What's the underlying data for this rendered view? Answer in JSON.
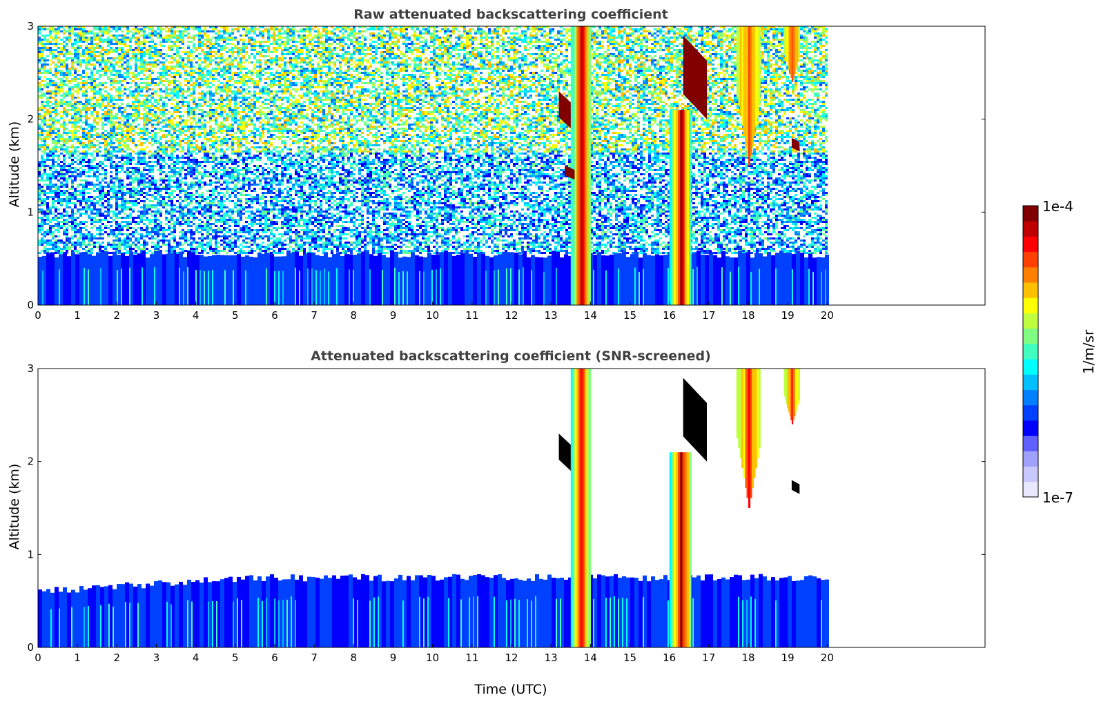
{
  "chart_data": [
    {
      "type": "heatmap",
      "title": "Raw attenuated backscattering coefficient",
      "xlabel": "",
      "ylabel": "Altitude (km)",
      "xlim": [
        0,
        24
      ],
      "ylim": [
        0,
        3
      ],
      "x_ticks": [
        "0",
        "1",
        "2",
        "3",
        "4",
        "5",
        "6",
        "7",
        "8",
        "9",
        "10",
        "11",
        "12",
        "13",
        "14",
        "15",
        "16",
        "17",
        "18",
        "19",
        "20"
      ],
      "y_ticks": [
        "0",
        "1",
        "2",
        "3"
      ],
      "data_extent_hours": [
        0,
        19.95
      ],
      "features": [
        {
          "kind": "noise_field",
          "x": [
            0,
            19.95
          ],
          "y": [
            0.55,
            3.0
          ],
          "level": "mid (cyan/green/yellow speckle)"
        },
        {
          "kind": "boundary_layer",
          "x": [
            0,
            19.95
          ],
          "y": [
            0,
            0.55
          ],
          "level": "low (blue)"
        },
        {
          "kind": "precip_column",
          "x": [
            13.5,
            14.0
          ],
          "y": [
            0,
            3.0
          ],
          "level": "high (yellow/orange/red)"
        },
        {
          "kind": "precip_column",
          "x": [
            16.0,
            16.55
          ],
          "y": [
            0,
            2.1
          ],
          "level": "high (yellow/orange/red)"
        },
        {
          "kind": "cloud_fallstreak",
          "x": [
            17.7,
            18.3
          ],
          "y": [
            1.5,
            3.0
          ],
          "level": "mid-high (yellow/orange)"
        },
        {
          "kind": "cloud_fallstreak",
          "x": [
            18.9,
            19.3
          ],
          "y": [
            2.4,
            3.0
          ],
          "level": "mid-high (yellow/orange)"
        },
        {
          "kind": "cloud_layer",
          "x": [
            13.2,
            13.5
          ],
          "y": [
            1.9,
            2.3
          ],
          "level": "very high (dark red)"
        },
        {
          "kind": "cloud_layer",
          "x": [
            13.35,
            13.6
          ],
          "y": [
            1.35,
            1.5
          ],
          "level": "very high (dark red)"
        },
        {
          "kind": "cloud_layer",
          "x": [
            16.35,
            16.95
          ],
          "y": [
            2.0,
            2.9
          ],
          "level": "very high (dark red)"
        },
        {
          "kind": "cloud_layer",
          "x": [
            19.1,
            19.3
          ],
          "y": [
            1.65,
            1.8
          ],
          "level": "very high (dark red)"
        }
      ]
    },
    {
      "type": "heatmap",
      "title": "Attenuated backscattering coefficient (SNR-screened)",
      "xlabel": "Time (UTC)",
      "ylabel": "Altitude (km)",
      "xlim": [
        0,
        24
      ],
      "ylim": [
        0,
        3
      ],
      "x_ticks": [
        "0",
        "1",
        "2",
        "3",
        "4",
        "5",
        "6",
        "7",
        "8",
        "9",
        "10",
        "11",
        "12",
        "13",
        "14",
        "15",
        "16",
        "17",
        "18",
        "19",
        "20"
      ],
      "y_ticks": [
        "0",
        "1",
        "2",
        "3"
      ],
      "data_extent_hours": [
        0,
        19.95
      ],
      "features": [
        {
          "kind": "boundary_layer",
          "x": [
            0,
            19.95
          ],
          "y": [
            0,
            0.75
          ],
          "level": "low (blue)"
        },
        {
          "kind": "precip_column",
          "x": [
            13.5,
            14.0
          ],
          "y": [
            0,
            3.0
          ],
          "level": "high (yellow/orange/red)"
        },
        {
          "kind": "precip_column",
          "x": [
            16.0,
            16.55
          ],
          "y": [
            0,
            2.1
          ],
          "level": "high (yellow/orange/red)"
        },
        {
          "kind": "cloud_fallstreak",
          "x": [
            17.7,
            18.3
          ],
          "y": [
            1.5,
            3.0
          ],
          "level": "mid-high (yellow/orange)"
        },
        {
          "kind": "cloud_fallstreak",
          "x": [
            18.9,
            19.3
          ],
          "y": [
            2.4,
            3.0
          ],
          "level": "mid-high (yellow/orange)"
        },
        {
          "kind": "flagged",
          "x": [
            13.2,
            13.5
          ],
          "y": [
            1.9,
            2.3
          ],
          "level": "black"
        },
        {
          "kind": "flagged",
          "x": [
            16.35,
            16.95
          ],
          "y": [
            2.0,
            2.9
          ],
          "level": "black"
        },
        {
          "kind": "flagged",
          "x": [
            19.1,
            19.3
          ],
          "y": [
            1.65,
            1.8
          ],
          "level": "black"
        }
      ]
    }
  ],
  "colorbar": {
    "label": "1/m/sr",
    "max_label": "1e-4",
    "min_label": "1e-7",
    "colormap": [
      "#e8e8ff",
      "#c8c8ff",
      "#a0a0ff",
      "#6060ff",
      "#0000ff",
      "#0040ff",
      "#0080ff",
      "#00c0ff",
      "#00ffff",
      "#40ffc0",
      "#80ff80",
      "#c0ff40",
      "#ffff00",
      "#ffc000",
      "#ff8000",
      "#ff4000",
      "#ff0000",
      "#c00000",
      "#800000"
    ]
  }
}
